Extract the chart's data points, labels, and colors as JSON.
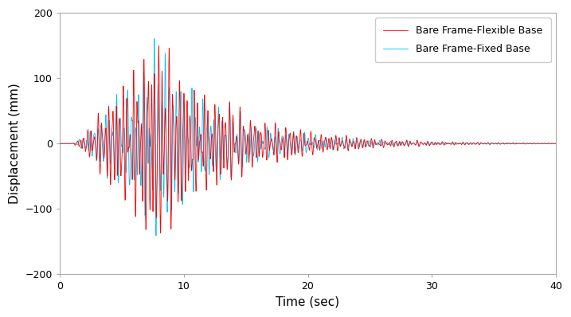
{
  "title": "",
  "xlabel": "Time (sec)",
  "ylabel": "Displacement (mm)",
  "xlim": [
    0,
    40
  ],
  "ylim": [
    -200,
    200
  ],
  "xticks": [
    0,
    10,
    20,
    30,
    40
  ],
  "yticks": [
    -200,
    -100,
    0,
    100,
    200
  ],
  "flexible_color": "#FF0000",
  "fixed_color": "#00BFFF",
  "flexible_label": "Bare Frame-Flexible Base",
  "fixed_label": "Bare Frame-Fixed Base",
  "linewidth": 0.6,
  "dt": 0.01,
  "duration": 40.0,
  "background_color": "#FFFFFF",
  "grid": false,
  "legend_fontsize": 9,
  "axis_fontsize": 11,
  "tick_fontsize": 9
}
